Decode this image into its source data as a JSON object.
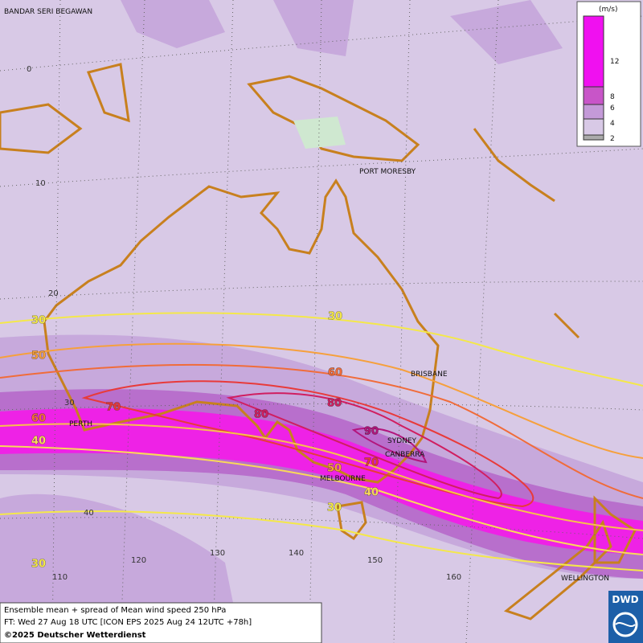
{
  "map": {
    "cities": [
      "BANDAR SERI BEGAWAN",
      "PORT MORESBY",
      "BRISBANE",
      "SYDNEY",
      "CANBERRA",
      "MELBOURNE",
      "PERTH",
      "WELLINGTON"
    ],
    "latitude_labels": [
      "0",
      "10",
      "20",
      "30",
      "40"
    ],
    "longitude_labels": [
      "110",
      "120",
      "130",
      "140",
      "150",
      "160"
    ],
    "contour_labels": [
      "30",
      "50",
      "60",
      "40",
      "30",
      "60",
      "70",
      "80",
      "80",
      "90",
      "70",
      "50",
      "40",
      "30",
      "30"
    ],
    "legend": {
      "unit": "(m/s)",
      "ticks": [
        "12",
        "8",
        "6",
        "4",
        "2"
      ]
    }
  },
  "footer": {
    "title": "Ensemble mean + spread of Mean wind speed 250 hPa",
    "forecast": "FT: Wed 27 Aug 18 UTC [ICON EPS 2025 Aug 24 12UTC +78h]",
    "copyright": "©2025 Deutscher Wetterdienst"
  },
  "logo": "DWD"
}
